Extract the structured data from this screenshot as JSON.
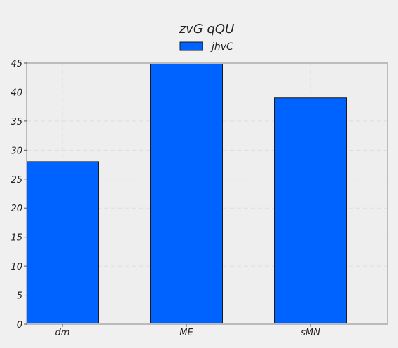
{
  "chart_data": {
    "type": "bar",
    "title": "zvG qQU",
    "xlabel": "",
    "ylabel": "",
    "categories": [
      "dm",
      "ME",
      "sMN"
    ],
    "series": [
      {
        "name": "jhvC",
        "values": [
          28,
          45,
          39
        ],
        "color": "#0062ff"
      }
    ],
    "ylim": [
      0,
      45
    ],
    "yticks": [
      0,
      5,
      10,
      15,
      20,
      25,
      30,
      35,
      40,
      45
    ],
    "grid": true,
    "legend_position": "top-center",
    "colors": {
      "background": "#f0f0f0",
      "plot_background": "#eeeeee",
      "grid": "#dddddd",
      "frame": "#bbbbbb",
      "bar_edge": "#1a1a1a"
    }
  }
}
